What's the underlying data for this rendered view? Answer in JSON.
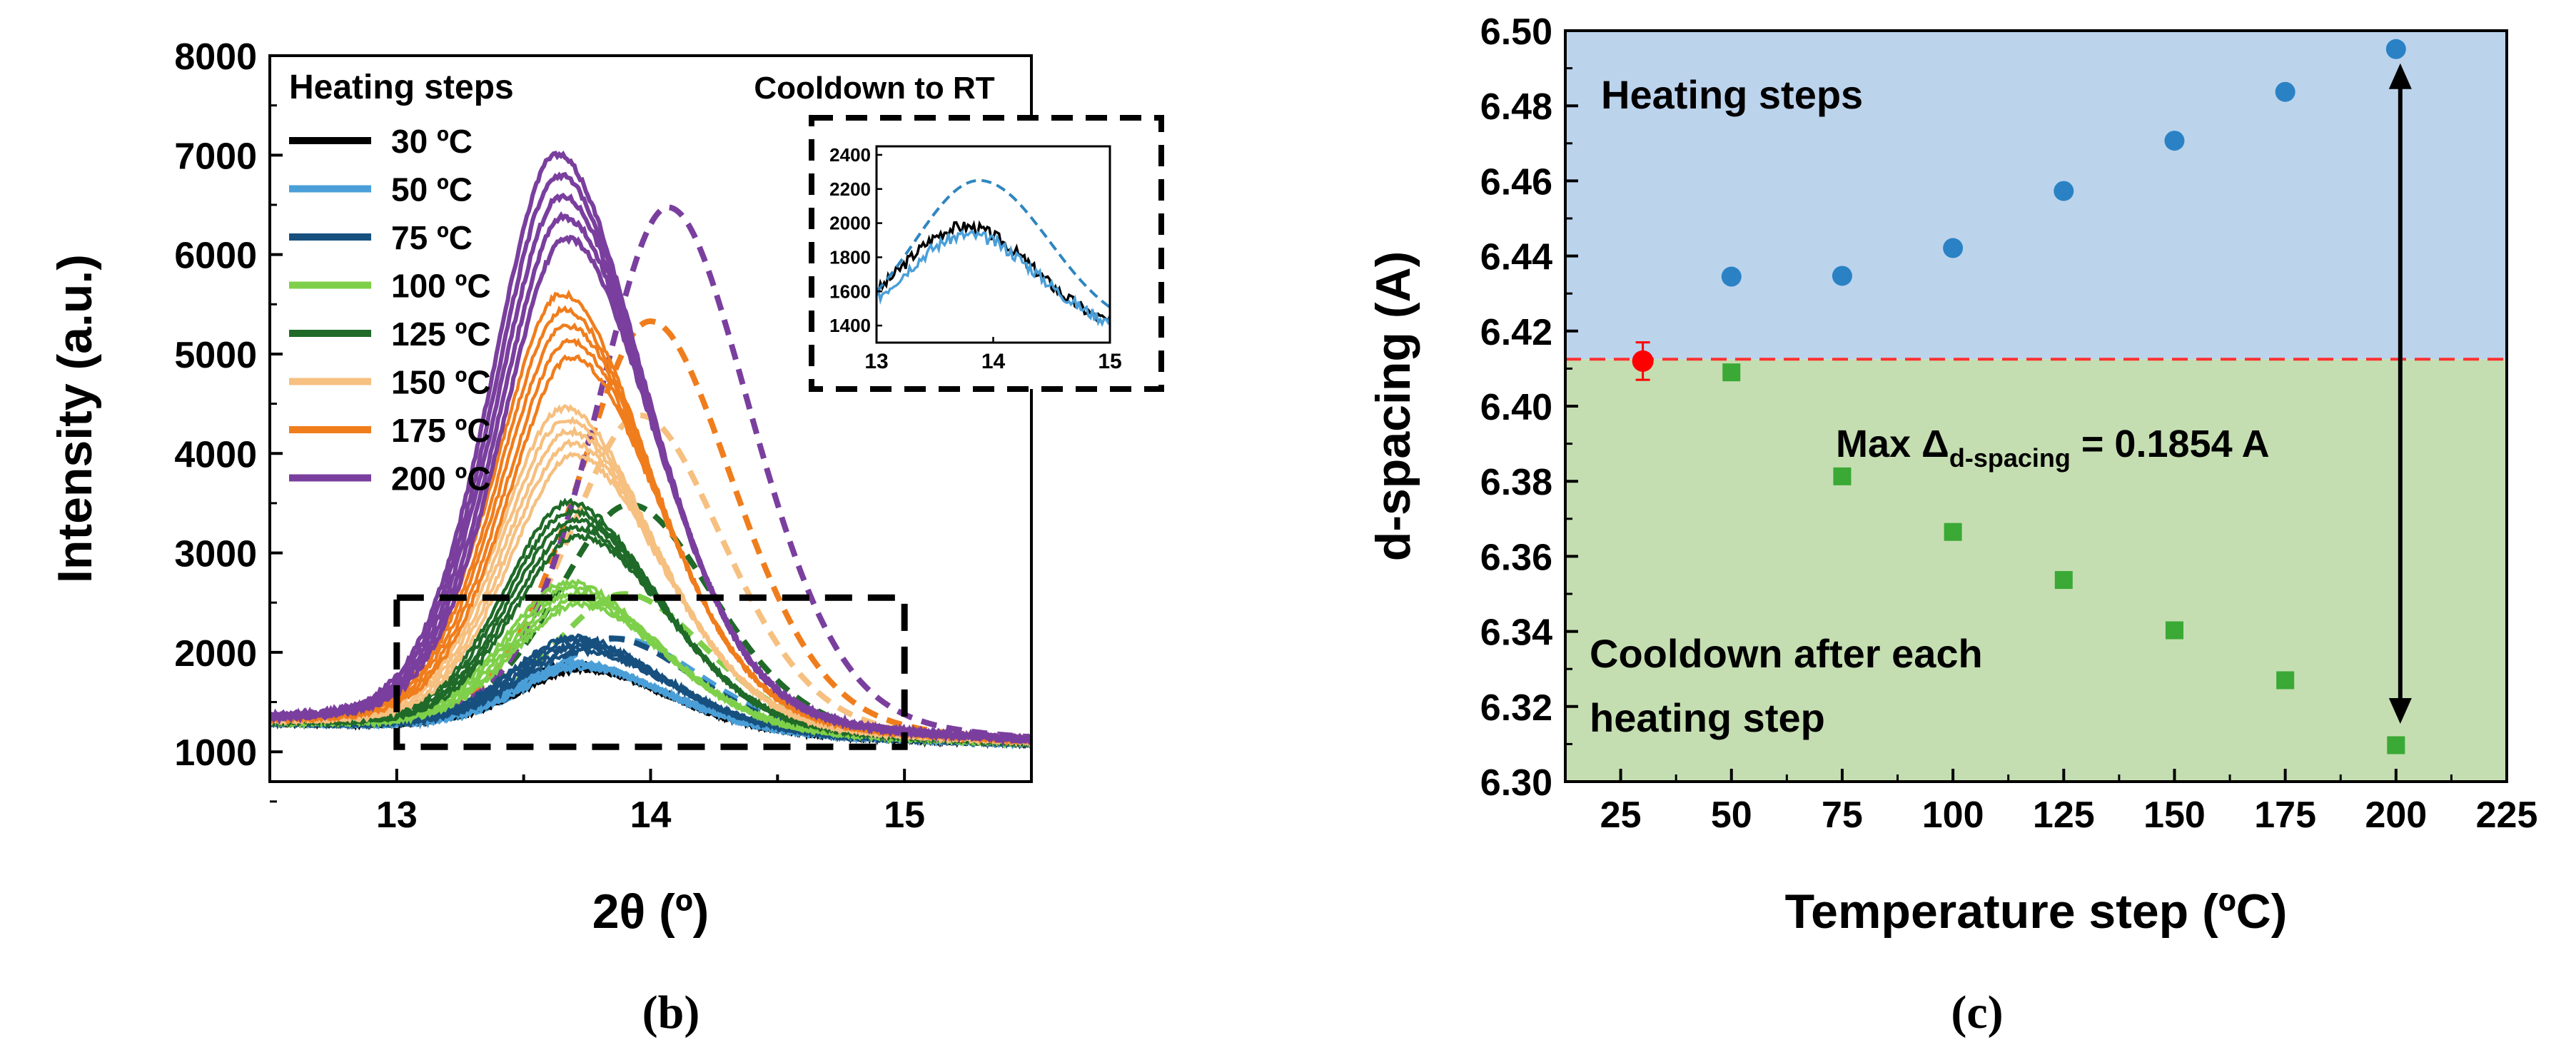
{
  "panels": {
    "b": {
      "label": "(b)"
    },
    "c": {
      "label": "(c)"
    }
  },
  "chart_data": [
    {
      "type": "line",
      "xlabel": "2θ (º)",
      "ylabel": "Intensity (a.u.)",
      "xlim": [
        12.5,
        15.5
      ],
      "ylim": [
        700,
        8000
      ],
      "xticks": [
        13,
        14,
        15
      ],
      "yticks": [
        1000,
        2000,
        3000,
        4000,
        5000,
        6000,
        7000,
        8000
      ],
      "legend": {
        "title": "Heating steps",
        "placement": "top-left"
      },
      "legend_dashed_title": "Cooldown to RT",
      "series": [
        {
          "name": "30 ºC",
          "color": "#000000",
          "peak_center": 13.7,
          "peak_height": 1980,
          "heating": true
        },
        {
          "name": "50 ºC",
          "color": "#4a9fd8",
          "peak_center": 13.7,
          "peak_height": 2000,
          "heating": true,
          "cooldown_peak_center": 13.88,
          "cooldown_peak_height": 2250
        },
        {
          "name": "75 ºC",
          "color": "#17507f",
          "peak_center": 13.7,
          "peak_height": 2250,
          "heating": true,
          "cooldown_peak_center": 13.85,
          "cooldown_peak_height": 2250
        },
        {
          "name": "100 ºC",
          "color": "#7ed04a",
          "peak_center": 13.68,
          "peak_height": 2800,
          "heating": true,
          "cooldown_peak_center": 13.9,
          "cooldown_peak_height": 2700
        },
        {
          "name": "125 ºC",
          "color": "#1f6a28",
          "peak_center": 13.68,
          "peak_height": 3600,
          "heating": true,
          "cooldown_peak_center": 13.92,
          "cooldown_peak_height": 3600
        },
        {
          "name": "150 ºC",
          "color": "#f6c080",
          "peak_center": 13.66,
          "peak_height": 4550,
          "heating": true,
          "cooldown_peak_center": 13.96,
          "cooldown_peak_height": 4500
        },
        {
          "name": "175 ºC",
          "color": "#f07d1c",
          "peak_center": 13.65,
          "peak_height": 5700,
          "heating": true,
          "cooldown_peak_center": 14.0,
          "cooldown_peak_height": 5450
        },
        {
          "name": "200 ºC",
          "color": "#7a3f9e",
          "peak_center": 13.63,
          "peak_height": 7100,
          "heating": true,
          "cooldown_peak_center": 14.07,
          "cooldown_peak_height": 6600
        }
      ],
      "inset": {
        "xlim": [
          13,
          15
        ],
        "ylim": [
          1300,
          2450
        ],
        "xticks": [
          13,
          14,
          15
        ],
        "yticks": [
          1400,
          1600,
          1800,
          2000,
          2200,
          2400
        ],
        "series": [
          {
            "name": "30 ºC solid",
            "color": "#000000",
            "dashed": false,
            "peak_center": 13.75,
            "peak_height": 1980
          },
          {
            "name": "50 ºC solid",
            "color": "#4a9fd8",
            "dashed": false,
            "peak_center": 13.78,
            "peak_height": 1930
          },
          {
            "name": "50 ºC dashed",
            "color": "#2f86bf",
            "dashed": true,
            "peak_center": 13.88,
            "peak_height": 2250
          }
        ]
      },
      "zoom_box": {
        "x": [
          13.0,
          15.0
        ],
        "y": [
          1050,
          2550
        ]
      }
    },
    {
      "type": "scatter",
      "xlabel": "Temperature step (ºC)",
      "ylabel": "d-spacing (A)",
      "xlim": [
        12.5,
        225
      ],
      "ylim": [
        6.3,
        6.5
      ],
      "xticks": [
        25,
        50,
        75,
        100,
        125,
        150,
        175,
        200,
        225
      ],
      "yticks": [
        6.3,
        6.32,
        6.34,
        6.36,
        6.38,
        6.4,
        6.42,
        6.44,
        6.46,
        6.48,
        6.5
      ],
      "reference_line": 6.4125,
      "regions": [
        {
          "label": "Heating steps",
          "color": "#bcd3ec",
          "range": [
            6.4125,
            6.5
          ]
        },
        {
          "label": "Cooldown after each heating step",
          "color": "#c4deb1",
          "range": [
            6.3,
            6.4125
          ]
        }
      ],
      "region_labels": {
        "top": "Heating steps",
        "bottom_line1": "Cooldown after each",
        "bottom_line2": "heating step"
      },
      "series": [
        {
          "name": "Heating",
          "marker": "circle",
          "color": "#2a82c5",
          "x": [
            50,
            75,
            100,
            125,
            150,
            175,
            200
          ],
          "y": [
            6.4345,
            6.4347,
            6.4421,
            6.4573,
            6.4707,
            6.4837,
            6.4951
          ]
        },
        {
          "name": "Cooldown",
          "marker": "square",
          "color": "#3aa935",
          "x": [
            50,
            75,
            100,
            125,
            150,
            175,
            200
          ],
          "y": [
            6.409,
            6.3813,
            6.3665,
            6.3537,
            6.3403,
            6.327,
            6.3097
          ]
        },
        {
          "name": "Reference",
          "marker": "circle",
          "color": "#ff0000",
          "x": [
            30
          ],
          "y": [
            6.412
          ],
          "error": 0.005
        }
      ],
      "annotation": {
        "prefix": "Max Δ",
        "subscript": "d-spacing",
        "suffix": " = 0.1854 A",
        "arrow_x": 200,
        "arrow_y": [
          6.3097,
          6.4951
        ]
      }
    }
  ]
}
